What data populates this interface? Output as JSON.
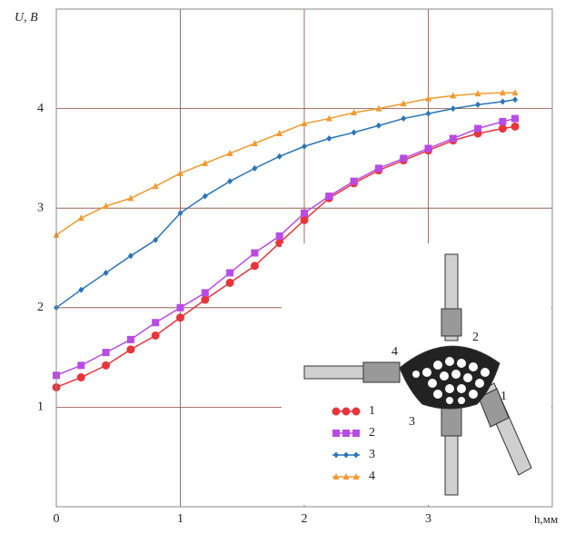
{
  "chart_data": {
    "type": "line",
    "y_label": "U, В",
    "x_label": "h,мм",
    "x": [
      0,
      0.2,
      0.4,
      0.6,
      0.8,
      1.0,
      1.2,
      1.4,
      1.6,
      1.8,
      2.0,
      2.2,
      2.4,
      2.6,
      2.8,
      3.0,
      3.2,
      3.4,
      3.6,
      3.7
    ],
    "series": [
      {
        "name": "1",
        "color": "#e8353b",
        "marker": "circle",
        "values": [
          1.2,
          1.3,
          1.42,
          1.58,
          1.72,
          1.9,
          2.08,
          2.25,
          2.42,
          2.65,
          2.88,
          3.1,
          3.25,
          3.38,
          3.48,
          3.58,
          3.68,
          3.75,
          3.8,
          3.82
        ]
      },
      {
        "name": "2",
        "color": "#b84be6",
        "marker": "square",
        "values": [
          1.32,
          1.42,
          1.55,
          1.68,
          1.85,
          2.0,
          2.15,
          2.35,
          2.55,
          2.72,
          2.95,
          3.12,
          3.27,
          3.4,
          3.5,
          3.6,
          3.7,
          3.8,
          3.87,
          3.9
        ]
      },
      {
        "name": "3",
        "color": "#2a74b8",
        "marker": "diamond",
        "values": [
          2.0,
          2.18,
          2.35,
          2.52,
          2.68,
          2.95,
          3.12,
          3.27,
          3.4,
          3.52,
          3.62,
          3.7,
          3.76,
          3.83,
          3.9,
          3.95,
          4.0,
          4.04,
          4.07,
          4.09
        ]
      },
      {
        "name": "4",
        "color": "#f09a30",
        "marker": "triangle",
        "values": [
          2.73,
          2.9,
          3.02,
          3.1,
          3.22,
          3.35,
          3.45,
          3.55,
          3.65,
          3.75,
          3.85,
          3.9,
          3.96,
          4.0,
          4.05,
          4.1,
          4.13,
          4.15,
          4.16,
          4.16
        ]
      }
    ],
    "xlim": [
      0,
      4
    ],
    "ylim": [
      0,
      5
    ],
    "xticks": [
      0,
      1,
      2,
      3
    ],
    "yticks": [
      1,
      2,
      3,
      4
    ],
    "grid": true,
    "inset_labels": [
      "4",
      "2",
      "1",
      "3"
    ]
  }
}
